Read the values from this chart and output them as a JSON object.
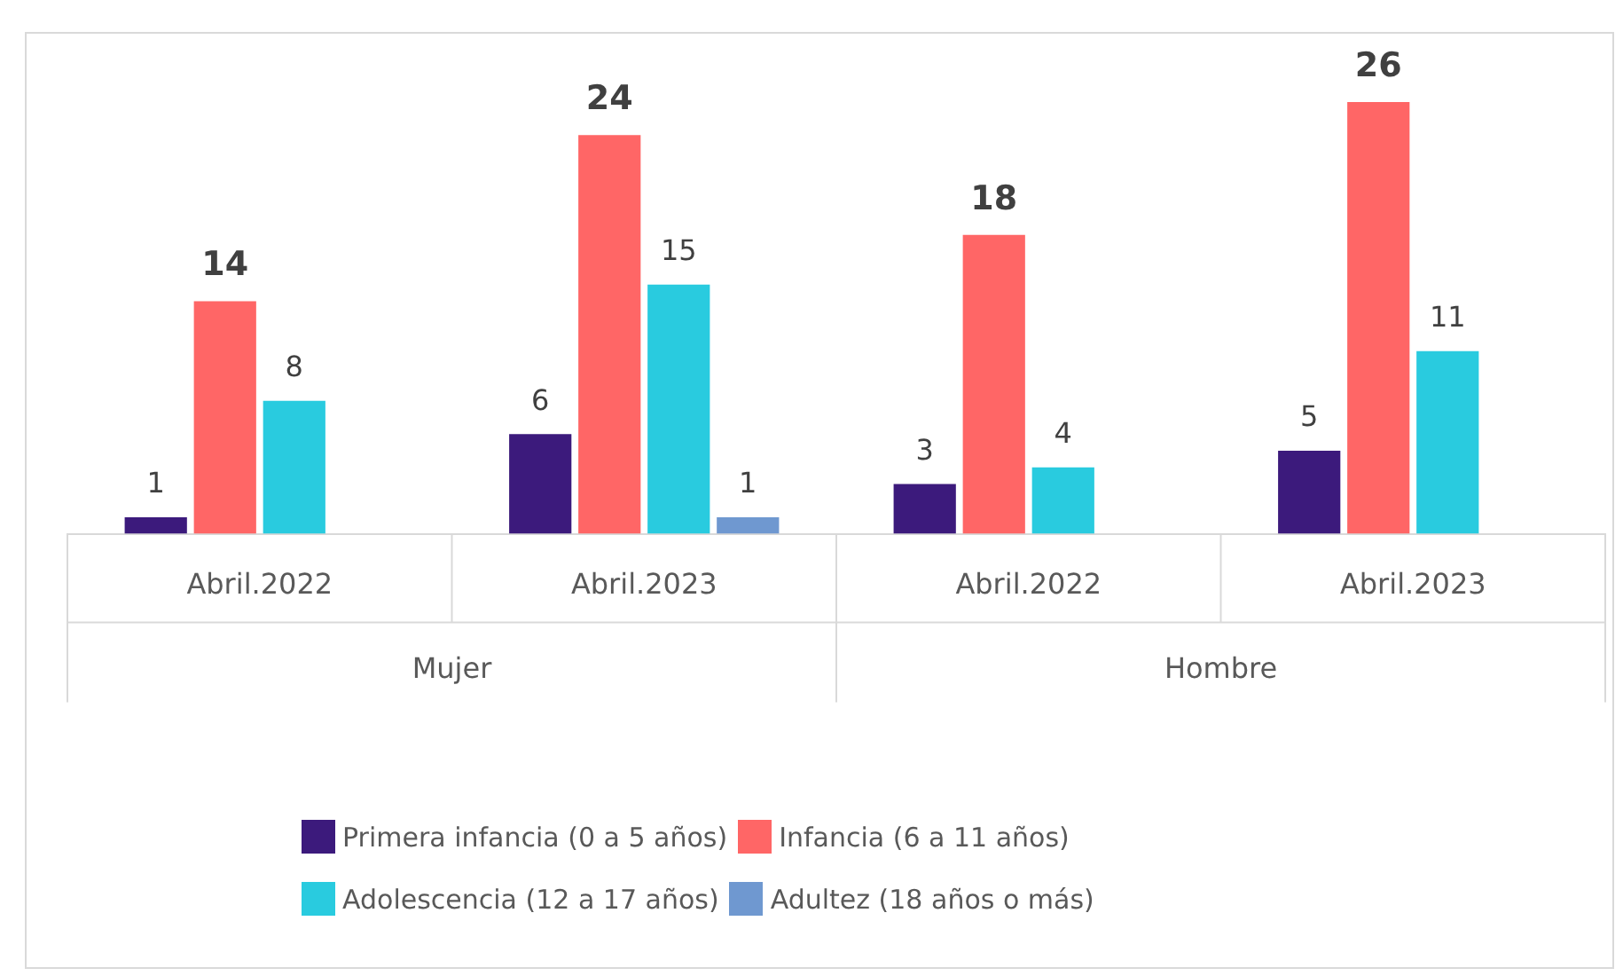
{
  "chart_data": {
    "type": "bar",
    "categories": [
      "Abril.2022",
      "Abril.2023",
      "Abril.2022",
      "Abril.2023"
    ],
    "annotations": [
      "Mujer",
      "Hombre"
    ],
    "series": [
      {
        "name": "Primera infancia (0 a 5 años)",
        "color": "#3c1a7c",
        "values": [
          1,
          6,
          3,
          5
        ]
      },
      {
        "name": "Infancia (6 a 11 años)",
        "color": "#ff6666",
        "values": [
          14,
          24,
          18,
          26
        ]
      },
      {
        "name": "Adolescencia (12 a 17 años)",
        "color": "#29cbdf",
        "values": [
          8,
          15,
          4,
          11
        ]
      },
      {
        "name": "Adultez (18 años o más)",
        "color": "#6f98d0",
        "values": [
          null,
          1,
          null,
          null
        ]
      }
    ],
    "data_labels": true,
    "grid": false,
    "legend": "bottom"
  }
}
